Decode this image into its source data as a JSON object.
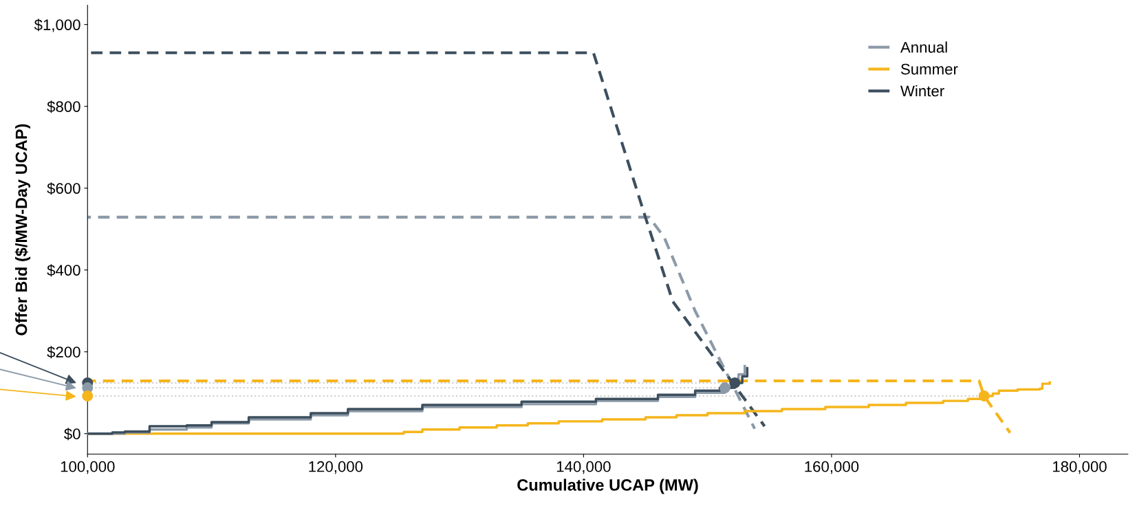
{
  "chart_data": {
    "type": "line",
    "xlabel": "Cumulative UCAP (MW)",
    "ylabel": "Offer Bid ($/MW-Day UCAP)",
    "xlim": [
      100000,
      183900
    ],
    "xticks": [
      {
        "value": 100000,
        "label": "100,000"
      },
      {
        "value": 120000,
        "label": "120,000"
      },
      {
        "value": 140000,
        "label": "140,000"
      },
      {
        "value": 160000,
        "label": "160,000"
      },
      {
        "value": 180000,
        "label": "180,000"
      }
    ],
    "ylim": [
      -50,
      1047
    ],
    "yticks": [
      {
        "value": 0,
        "label": "$0"
      },
      {
        "value": 200,
        "label": "$200"
      },
      {
        "value": 400,
        "label": "$400"
      },
      {
        "value": 600,
        "label": "$600"
      },
      {
        "value": 800,
        "label": "$800"
      },
      {
        "value": 1000,
        "label": "$1,000"
      }
    ],
    "grid": false,
    "legend": "top right",
    "series": [
      {
        "type": "line",
        "line_style": "dotted",
        "color": "#cccccc",
        "x": [
          100000,
          152200
        ],
        "values": [
          124,
          124
        ]
      },
      {
        "type": "line",
        "line_style": "dotted",
        "color": "#cccccc",
        "x": [
          100000,
          151400
        ],
        "values": [
          112,
          112
        ]
      },
      {
        "type": "line",
        "line_style": "dotted",
        "color": "#cccccc",
        "x": [
          100000,
          172300
        ],
        "values": [
          92,
          92
        ]
      },
      {
        "type": "step",
        "line_style": "solid",
        "color": "#f5b51b",
        "x": [
          100000,
          124000,
          125500,
          127000,
          130000,
          133000,
          135500,
          138000,
          141500,
          145000,
          147500,
          150000,
          153000,
          156000,
          159500,
          163000,
          166000,
          169000,
          171000,
          172300,
          173000,
          173500,
          175000,
          176800,
          177000,
          177600
        ],
        "values": [
          0,
          0,
          4,
          10,
          15,
          20,
          25,
          30,
          35,
          40,
          45,
          50,
          55,
          60,
          65,
          70,
          75,
          80,
          85,
          92,
          98,
          105,
          108,
          110,
          122,
          125
        ]
      },
      {
        "type": "step",
        "line_style": "solid",
        "color": "#8c9aa8",
        "x": [
          100000,
          103000,
          105000,
          108000,
          110000,
          113000,
          118000,
          121000,
          127000,
          135000,
          141000,
          146000,
          149000,
          151400,
          152000,
          152500,
          153000
        ],
        "values": [
          0,
          3,
          10,
          15,
          25,
          35,
          45,
          55,
          65,
          72,
          80,
          90,
          100,
          112,
          125,
          145,
          165
        ]
      },
      {
        "type": "step",
        "line_style": "solid",
        "color": "#3d4f5e",
        "x": [
          100000,
          102000,
          103000,
          105000,
          108000,
          110000,
          113000,
          118000,
          121000,
          127000,
          135000,
          141000,
          146000,
          149000,
          151000,
          152200,
          152800,
          153200
        ],
        "values": [
          0,
          3,
          5,
          18,
          20,
          28,
          40,
          50,
          60,
          70,
          78,
          85,
          95,
          105,
          112,
          124,
          140,
          160
        ]
      },
      {
        "name": "Annual",
        "line_style": "dashed",
        "color": "#8c9aa8",
        "x": [
          100000,
          145300,
          146500,
          149000,
          153800
        ],
        "values": [
          529,
          529,
          480,
          300,
          12
        ]
      },
      {
        "name": "Summer",
        "line_style": "dashed",
        "color": "#f5b51b",
        "x": [
          100000,
          171900,
          172300,
          174400
        ],
        "values": [
          129,
          129,
          92,
          2
        ]
      },
      {
        "name": "Winter",
        "line_style": "dashed",
        "color": "#3d4f5e",
        "x": [
          100000,
          140800,
          145000,
          147200,
          154600
        ],
        "values": [
          931,
          931,
          528,
          323,
          18
        ]
      },
      {
        "type": "scatter",
        "marker": "circle",
        "x": [
          100000,
          100000,
          100000,
          152200,
          151400,
          172300
        ],
        "values": [
          124,
          112,
          92,
          124,
          112,
          92
        ],
        "colors": [
          "#3d4f5e",
          "#8c9aa8",
          "#f5b51b",
          "#3d4f5e",
          "#8c9aa8",
          "#f5b51b"
        ]
      }
    ]
  }
}
